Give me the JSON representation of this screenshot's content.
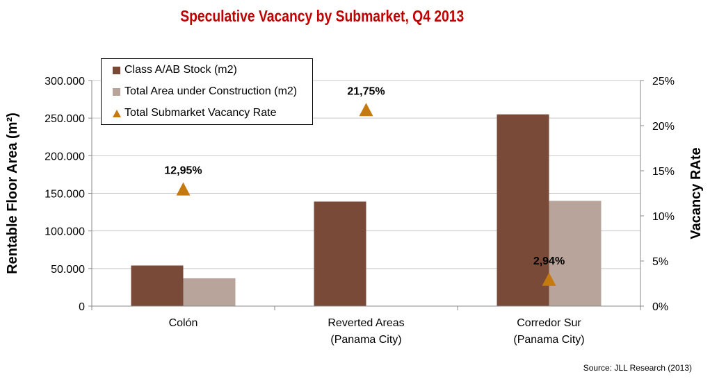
{
  "chart_data": {
    "type": "bar",
    "title": "Speculative Vacancy by Submarket, Q4 2013",
    "categories": [
      [
        "Colón"
      ],
      [
        "Reverted Areas",
        "(Panama City)"
      ],
      [
        "Corredor Sur",
        "(Panama City)"
      ]
    ],
    "series": [
      {
        "name": "Class A/AB Stock (m2)",
        "kind": "bar",
        "axis": "left",
        "color": "#7a4a38",
        "values": [
          54000,
          139000,
          255000
        ]
      },
      {
        "name": "Total Area under Construction (m2)",
        "kind": "bar",
        "axis": "left",
        "color": "#b8a49a",
        "values": [
          37000,
          0,
          140000
        ]
      },
      {
        "name": "Total Submarket Vacancy Rate",
        "kind": "triangle-marker",
        "axis": "right",
        "color": "#c47a0e",
        "values": [
          12.95,
          21.75,
          2.94
        ],
        "labels": [
          "12,95%",
          "21,75%",
          "2,94%"
        ]
      }
    ],
    "ylabel": "Rentable Floor Area (m²)",
    "y2label": "Vacancy RAte",
    "ylim": [
      0,
      300000
    ],
    "y2lim": [
      0,
      25
    ],
    "yticks": [
      0,
      50000,
      100000,
      150000,
      200000,
      250000,
      300000
    ],
    "yticklabels": [
      "0",
      "50.000",
      "100.000",
      "150.000",
      "200.000",
      "250.000",
      "300.000"
    ],
    "y2ticks": [
      0,
      5,
      10,
      15,
      20,
      25
    ],
    "y2ticklabels": [
      "0%",
      "5%",
      "10%",
      "15%",
      "20%",
      "25%"
    ],
    "grid": "horizontal",
    "legend_position": "top-left",
    "source": "Source: JLL Research (2013)"
  }
}
